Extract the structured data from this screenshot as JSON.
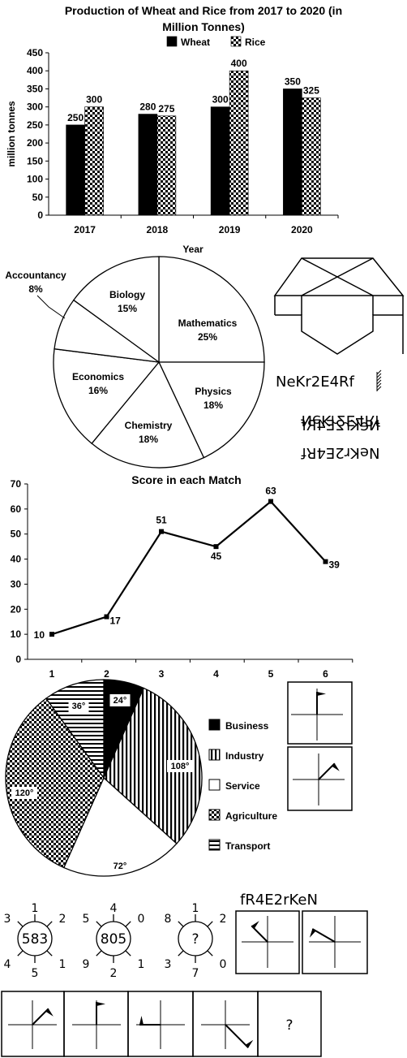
{
  "chart_data": [
    {
      "type": "bar",
      "title_line1": "Production of Wheat and Rice from 2017 to 2020 (in",
      "title_line2": "Million Tonnes)",
      "xlabel": "Year",
      "ylabel": "million tonnes",
      "ylim": [
        0,
        450
      ],
      "yticks": [
        0,
        50,
        100,
        150,
        200,
        250,
        300,
        350,
        400,
        450
      ],
      "categories": [
        "2017",
        "2018",
        "2019",
        "2020"
      ],
      "series": [
        {
          "name": "Wheat",
          "values": [
            250,
            280,
            300,
            350
          ],
          "fill": "#000000"
        },
        {
          "name": "Rice",
          "values": [
            300,
            275,
            400,
            325
          ],
          "fill": "checker"
        }
      ],
      "legend": "top-center"
    },
    {
      "type": "pie",
      "slices": [
        {
          "label": "Mathematics",
          "value": 25,
          "text": "25%"
        },
        {
          "label": "Physics",
          "value": 18,
          "text": "18%"
        },
        {
          "label": "Chemistry",
          "value": 18,
          "text": "18%"
        },
        {
          "label": "Economics",
          "value": 16,
          "text": "16%"
        },
        {
          "label": "Accountancy",
          "value": 8,
          "text": "8%"
        },
        {
          "label": "Biology",
          "value": 15,
          "text": "15%"
        }
      ]
    },
    {
      "type": "line",
      "title": "Score in each Match",
      "x": [
        1,
        2,
        3,
        4,
        5,
        6
      ],
      "values": [
        10,
        17,
        51,
        45,
        63,
        39
      ],
      "ylim": [
        0,
        70
      ],
      "yticks": [
        0,
        10,
        20,
        30,
        40,
        50,
        60,
        70
      ]
    },
    {
      "type": "pie",
      "slices": [
        {
          "label": "Business",
          "value": 24,
          "text": "24°",
          "fill": "solid"
        },
        {
          "label": "Industry",
          "value": 108,
          "text": "108°",
          "fill": "vlines"
        },
        {
          "label": "Service",
          "value": 72,
          "text": "72°",
          "fill": "white"
        },
        {
          "label": "Agriculture",
          "value": 120,
          "text": "120°",
          "fill": "checker"
        },
        {
          "label": "Transport",
          "value": 36,
          "text": "36°",
          "fill": "hlines"
        }
      ],
      "legend": "right"
    }
  ],
  "puzzles": {
    "mirror_text": "NeKr2E4Rf",
    "mirror_options": [
      "NeKr2E4Rf",
      "NeKr2E4Rf",
      "NeKr2E4Rf"
    ],
    "water_text": "fR4E2rKeN",
    "number_circles": [
      {
        "center": "583",
        "top": "1",
        "top_left": "3",
        "top_right": "2",
        "bottom_left": "4",
        "bottom_right": "1",
        "bottom": "5"
      },
      {
        "center": "805",
        "top": "4",
        "top_left": "5",
        "top_right": "0",
        "bottom_left": "9",
        "bottom_right": "1",
        "bottom": "2"
      },
      {
        "center": "?",
        "top": "1",
        "top_left": "8",
        "top_right": "2",
        "bottom_left": "3",
        "bottom_right": "0",
        "bottom": "7"
      }
    ],
    "question_mark": "?"
  }
}
